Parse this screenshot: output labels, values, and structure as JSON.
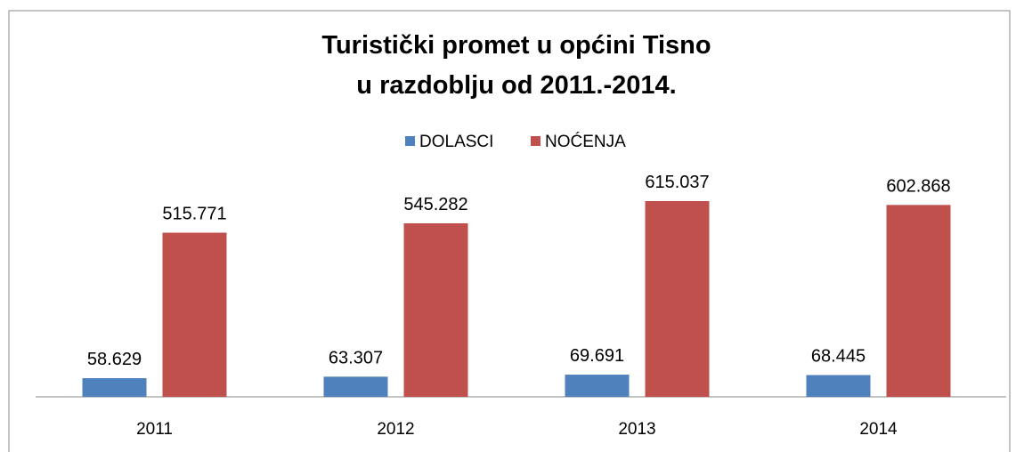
{
  "chart_data": {
    "type": "bar",
    "title": [
      "Turistički promet u općini Tisno",
      "u razdoblju od 2011.-2014."
    ],
    "categories": [
      "2011",
      "2012",
      "2013",
      "2014"
    ],
    "series": [
      {
        "name": "DOLASCI",
        "color": "#4f81bd",
        "values": [
          58629,
          63307,
          69691,
          68445
        ],
        "value_labels": [
          "58.629",
          "63.307",
          "69.691",
          "68.445"
        ]
      },
      {
        "name": "NOĆENJA",
        "color": "#c0504d",
        "values": [
          515771,
          545282,
          615037,
          602868
        ],
        "value_labels": [
          "515.771",
          "545.282",
          "615.037",
          "602.868"
        ]
      }
    ],
    "legend": "top"
  }
}
